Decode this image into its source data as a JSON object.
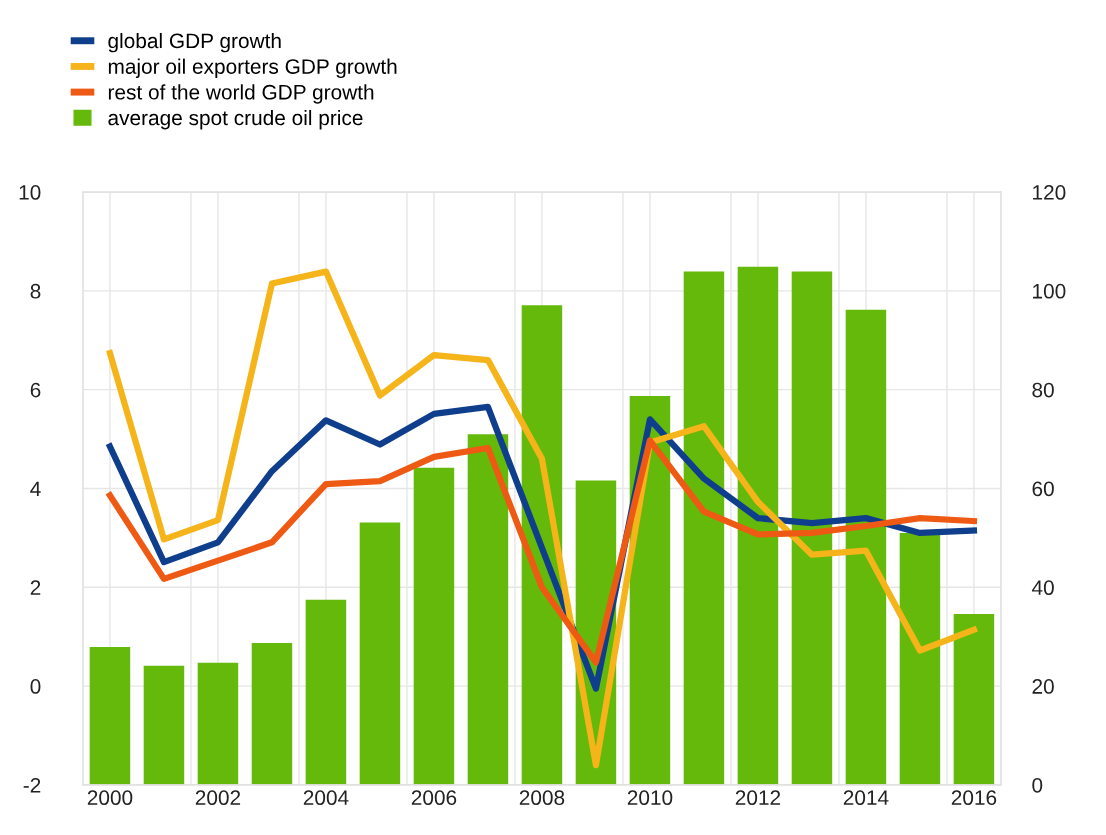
{
  "chart_data": {
    "type": "line",
    "x": [
      2000,
      2001,
      2002,
      2003,
      2004,
      2005,
      2006,
      2007,
      2008,
      2009,
      2010,
      2011,
      2012,
      2013,
      2014,
      2015,
      2016
    ],
    "series": [
      {
        "name": "global GDP growth",
        "color": "#0f3f8c",
        "values": [
          4.85,
          2.51,
          2.91,
          4.35,
          5.38,
          4.89,
          5.51,
          5.65,
          2.8,
          -0.05,
          5.4,
          4.2,
          3.4,
          3.3,
          3.4,
          3.1,
          3.15
        ]
      },
      {
        "name": "major oil exporters GDP growth",
        "color": "#f4b41a",
        "values": [
          6.74,
          2.97,
          3.36,
          8.15,
          8.39,
          5.88,
          6.7,
          6.6,
          4.6,
          -1.6,
          4.93,
          5.26,
          3.73,
          2.66,
          2.74,
          0.72,
          1.14
        ]
      },
      {
        "name": "rest of the world GDP growth",
        "color": "#ee5a14",
        "values": [
          3.86,
          2.17,
          2.54,
          2.91,
          4.09,
          4.15,
          4.64,
          4.82,
          2.0,
          0.48,
          4.97,
          3.53,
          3.07,
          3.1,
          3.24,
          3.4,
          3.34
        ]
      },
      {
        "name": "average spot crude oil price",
        "type": "bar",
        "axis": "y2",
        "color": "#65b90a",
        "values": [
          27.9,
          24.1,
          24.7,
          28.7,
          37.5,
          53.1,
          64.2,
          71.0,
          97.1,
          61.6,
          78.7,
          103.9,
          104.9,
          103.9,
          96.2,
          51,
          34.6
        ]
      }
    ],
    "xlim": [
      1999.5,
      2016.5
    ],
    "xticks": [
      2000,
      {
        "value": 2001.5,
        "label": null
      },
      2002,
      {
        "value": 2003.5,
        "label": null
      },
      2004,
      {
        "value": 2005.5,
        "label": null
      },
      2006,
      {
        "value": 2007.5,
        "label": null
      },
      2008,
      {
        "value": 2009.5,
        "label": null
      },
      2010,
      {
        "value": 2011.5,
        "label": null
      },
      2012,
      {
        "value": 2013.5,
        "label": null
      },
      2014,
      {
        "value": 2015.5,
        "label": null
      },
      2016
    ],
    "ylim": [
      -2,
      10
    ],
    "yticks": [
      -2,
      0,
      2,
      4,
      6,
      8,
      10
    ],
    "y2lim": [
      0,
      120
    ],
    "y2ticks": [
      0,
      20,
      40,
      60,
      80,
      100,
      120
    ],
    "grid": true,
    "legend": "top left",
    "marker": "none",
    "line_style": "solid"
  }
}
